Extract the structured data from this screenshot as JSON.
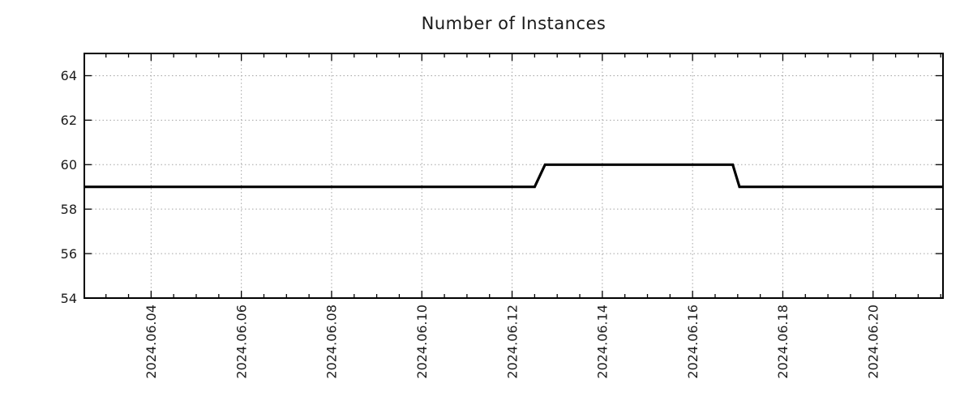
{
  "chart_data": {
    "type": "line",
    "title": "Number of Instances",
    "xlabel": "",
    "ylabel": "",
    "x_unit": "date (June 2024, day number)",
    "xlim_days": [
      2.52,
      21.55
    ],
    "ylim": [
      54,
      65
    ],
    "y_major_ticks": [
      54,
      56,
      58,
      60,
      62,
      64
    ],
    "x_major_ticks": [
      {
        "day": 4,
        "label": "2024.06.04"
      },
      {
        "day": 6,
        "label": "2024.06.06"
      },
      {
        "day": 8,
        "label": "2024.06.08"
      },
      {
        "day": 10,
        "label": "2024.06.10"
      },
      {
        "day": 12,
        "label": "2024.06.12"
      },
      {
        "day": 14,
        "label": "2024.06.14"
      },
      {
        "day": 16,
        "label": "2024.06.16"
      },
      {
        "day": 18,
        "label": "2024.06.18"
      },
      {
        "day": 20,
        "label": "2024.06.20"
      }
    ],
    "x_minor_tick_step_days": 0.5,
    "grid": {
      "show": true,
      "style": "dotted",
      "color": "#a3a3a3",
      "on": "major-ticks-both-axes"
    },
    "legend": {
      "show": false
    },
    "series": [
      {
        "name": "Number of Instances",
        "color": "#000000",
        "line_width": 3.2,
        "points": [
          {
            "time": "2024-06-02T12:00",
            "day": 2.52,
            "value": 59
          },
          {
            "time": "2024-06-12T12:00",
            "day": 12.5,
            "value": 59
          },
          {
            "time": "2024-06-12T17:30",
            "day": 12.73,
            "value": 60
          },
          {
            "time": "2024-06-16T21:00",
            "day": 16.89,
            "value": 60
          },
          {
            "time": "2024-06-17T01:00",
            "day": 17.04,
            "value": 59
          },
          {
            "time": "2024-06-21T13:00",
            "day": 21.55,
            "value": 59
          }
        ],
        "summary": "Constant at 59 instances; steps up to 60 around 2024-06-12 midday; returns to 59 around 2024-06-17 00:00"
      }
    ],
    "styles": {
      "axis_color": "#000000",
      "text_color": "#1c1c1c",
      "background": "#ffffff",
      "tick_label_font_px": 16,
      "title_font_px": 21
    }
  }
}
